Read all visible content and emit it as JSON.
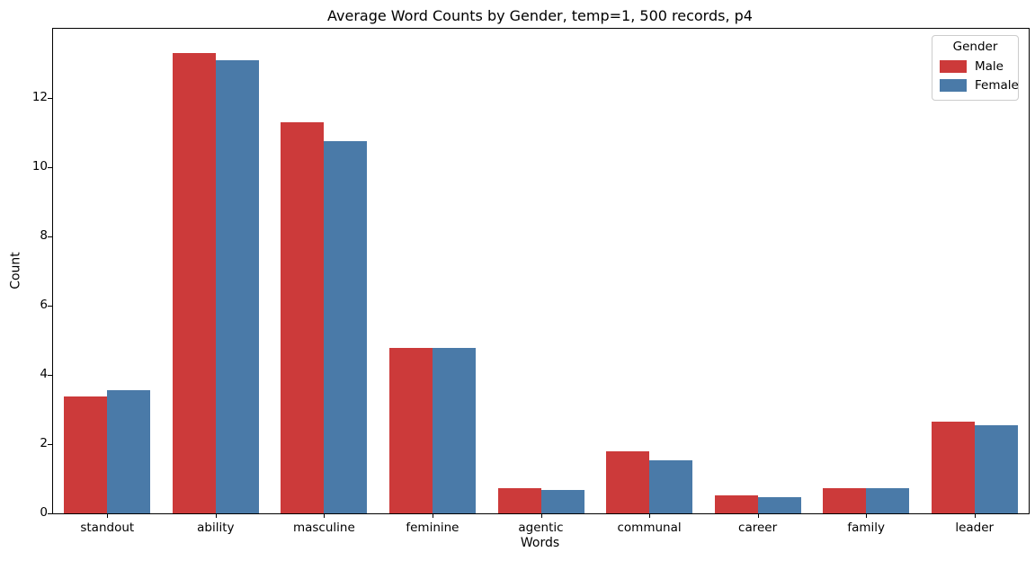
{
  "chart_data": {
    "type": "bar",
    "title": "Average Word Counts by Gender, temp=1, 500 records, p4",
    "xlabel": "Words",
    "ylabel": "Count",
    "categories": [
      "standout",
      "ability",
      "masculine",
      "feminine",
      "agentic",
      "communal",
      "career",
      "family",
      "leader"
    ],
    "series": [
      {
        "name": "Male",
        "color": "#cc3a3a",
        "values": [
          3.38,
          13.3,
          11.3,
          4.78,
          0.73,
          1.78,
          0.53,
          0.73,
          2.65
        ]
      },
      {
        "name": "Female",
        "color": "#4a7aa8",
        "values": [
          3.55,
          13.1,
          10.75,
          4.78,
          0.68,
          1.52,
          0.46,
          0.72,
          2.55
        ]
      }
    ],
    "ylim": [
      0,
      14
    ],
    "yticks": [
      0,
      2,
      4,
      6,
      8,
      10,
      12
    ],
    "legend_title": "Gender",
    "legend_position": "upper right",
    "grid": false,
    "background": "#ffffff"
  }
}
